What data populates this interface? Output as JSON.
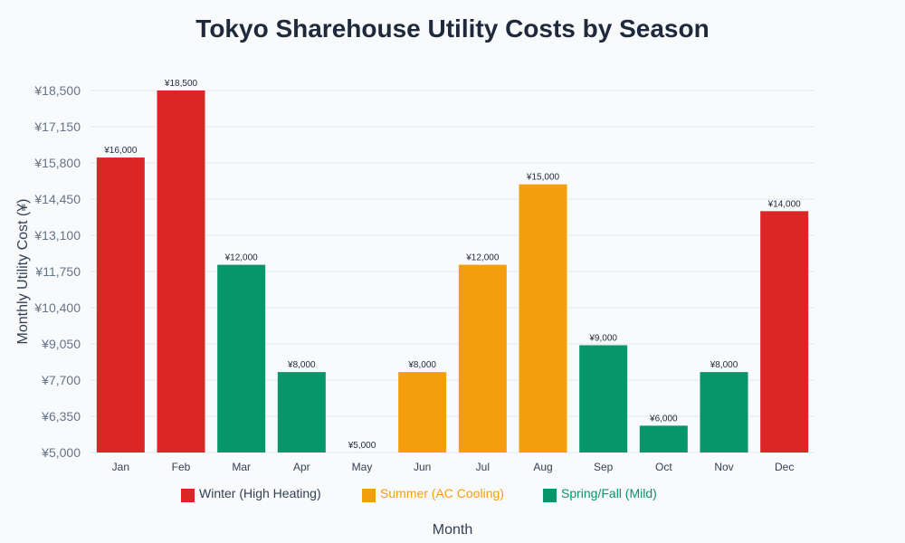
{
  "chart_data": {
    "type": "bar",
    "title": "Tokyo Sharehouse Utility Costs by Season",
    "xlabel": "Month",
    "ylabel": "Monthly Utility Cost (¥)",
    "ylim": [
      5000,
      18500
    ],
    "yticks": [
      "¥5,000",
      "¥6,350",
      "¥7,700",
      "¥9,050",
      "¥10,400",
      "¥11,750",
      "¥13,100",
      "¥14,450",
      "¥15,800",
      "¥17,150",
      "¥18,500"
    ],
    "ytick_values": [
      5000,
      6350,
      7700,
      9050,
      10400,
      11750,
      13100,
      14450,
      15800,
      17150,
      18500
    ],
    "grid": true,
    "legend_position": "bottom",
    "categories": [
      "Jan",
      "Feb",
      "Mar",
      "Apr",
      "May",
      "Jun",
      "Jul",
      "Aug",
      "Sep",
      "Oct",
      "Nov",
      "Dec"
    ],
    "values": [
      16000,
      18500,
      12000,
      8000,
      5000,
      8000,
      12000,
      15000,
      9000,
      6000,
      8000,
      14000
    ],
    "data_labels": [
      "¥16,000",
      "¥18,500",
      "¥12,000",
      "¥8,000",
      "¥5,000",
      "¥8,000",
      "¥12,000",
      "¥15,000",
      "¥9,000",
      "¥6,000",
      "¥8,000",
      "¥14,000"
    ],
    "bar_groups": [
      0,
      0,
      2,
      2,
      2,
      1,
      1,
      1,
      2,
      2,
      2,
      0
    ],
    "legend": [
      {
        "name": "Winter (High Heating)",
        "color": "#dc2626",
        "text_color": "#334155"
      },
      {
        "name": "Summer (AC Cooling)",
        "color": "#f59e0b",
        "text_color": "#f59e0b"
      },
      {
        "name": "Spring/Fall (Mild)",
        "color": "#059669",
        "text_color": "#059669"
      }
    ]
  }
}
